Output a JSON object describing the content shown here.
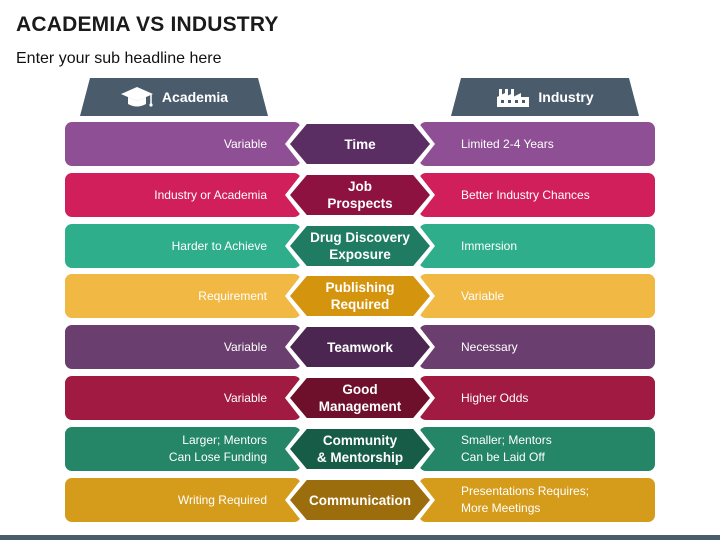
{
  "title": "ACADEMIA VS INDUSTRY",
  "subtitle": "Enter your sub headline here",
  "headers": {
    "left": "Academia",
    "right": "Industry",
    "left_icon": "graduation-cap-icon",
    "right_icon": "factory-icon",
    "color": "#4a5b6b"
  },
  "rows": [
    {
      "left": "Variable",
      "center": "Time",
      "right": "Limited 2-4 Years",
      "color": "#8e4f94",
      "dark": "#5b2e63"
    },
    {
      "left": "Industry or Academia",
      "center": "Job\nProspects",
      "right": "Better Industry Chances",
      "color": "#d11f5b",
      "dark": "#8e1240"
    },
    {
      "left": "Harder to Achieve",
      "center": "Drug Discovery\nExposure",
      "right": "Immersion",
      "color": "#2fae8c",
      "dark": "#1f7b62"
    },
    {
      "left": "Requirement",
      "center": "Publishing\nRequired",
      "right": "Variable",
      "color": "#f1b843",
      "dark": "#d5940d"
    },
    {
      "left": "Variable",
      "center": "Teamwork",
      "right": "Necessary",
      "color": "#6a3e6e",
      "dark": "#4a2650"
    },
    {
      "left": "Variable",
      "center": "Good\nManagement",
      "right": "Higher Odds",
      "color": "#a11a42",
      "dark": "#6e0f2b"
    },
    {
      "left": "Larger; Mentors\nCan Lose Funding",
      "center": "Community\n& Mentorship",
      "right": "Smaller; Mentors\nCan be Laid Off",
      "color": "#248567",
      "dark": "#165c47"
    },
    {
      "left": "Writing Required",
      "center": "Communication",
      "right": "Presentations Requires;\nMore Meetings",
      "color": "#d59b1b",
      "dark": "#9c6d0c"
    }
  ]
}
